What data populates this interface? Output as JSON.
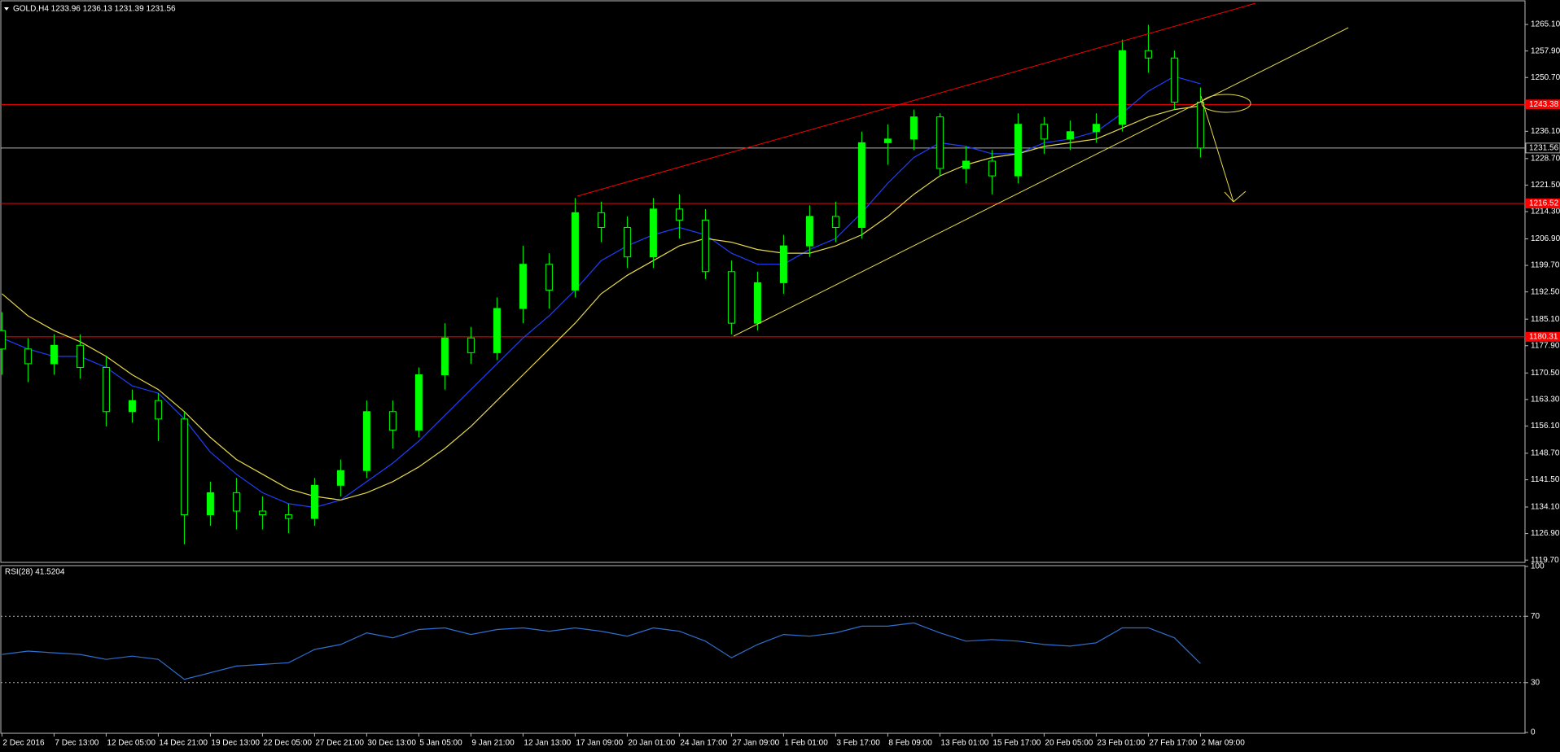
{
  "chart_data": [
    {
      "type": "candlestick",
      "title": "GOLD,H4  1233.96 1236.13 1231.39 1231.56",
      "color": "#00ff00",
      "categories": [
        "2 Dec 2016",
        null,
        "7 Dec 13:00",
        null,
        "12 Dec 05:00",
        null,
        "14 Dec 21:00",
        null,
        "19 Dec 13:00",
        null,
        "22 Dec 05:00",
        null,
        "27 Dec 21:00",
        null,
        "30 Dec 13:00",
        null,
        "5 Jan 05:00",
        null,
        "9 Jan 21:00",
        null,
        "12 Jan 13:00",
        null,
        "17 Jan 09:00",
        null,
        "20 Jan 01:00",
        null,
        "24 Jan 17:00",
        null,
        "27 Jan 09:00",
        null,
        "1 Feb 01:00",
        null,
        "3 Feb 17:00",
        null,
        "8 Feb 09:00",
        null,
        "13 Feb 01:00",
        null,
        "15 Feb 17:00",
        null,
        "20 Feb 05:00",
        null,
        "23 Feb 01:00",
        null,
        "27 Feb 17:00",
        null,
        "2 Mar 09:00"
      ],
      "open": [
        1182,
        1177,
        1173,
        1178,
        1172,
        1160,
        1163,
        1158,
        1132,
        1138,
        1133,
        1132,
        1131,
        1140,
        1144,
        1160,
        1155,
        1170,
        1180,
        1176,
        1188,
        1200,
        1193,
        1214,
        1210,
        1202,
        1215,
        1212,
        1198,
        1184,
        1195,
        1205,
        1213,
        1210,
        1233,
        1234,
        1240,
        1226,
        1228,
        1224,
        1238,
        1234,
        1236,
        1238,
        1258,
        1256,
        1244
      ],
      "high": [
        1187,
        1180,
        1181,
        1181,
        1175,
        1166,
        1165,
        1160,
        1141,
        1142,
        1137,
        1135,
        1142,
        1147,
        1163,
        1163,
        1172,
        1184,
        1183,
        1191,
        1205,
        1203,
        1218,
        1217,
        1213,
        1218,
        1219,
        1215,
        1201,
        1198,
        1208,
        1216,
        1217,
        1236,
        1238,
        1242,
        1241,
        1232,
        1231,
        1241,
        1240,
        1239,
        1241,
        1261,
        1265,
        1258,
        1248
      ],
      "low": [
        1170,
        1168,
        1170,
        1169,
        1156,
        1157,
        1152,
        1124,
        1129,
        1128,
        1128,
        1127,
        1129,
        1137,
        1142,
        1150,
        1153,
        1166,
        1173,
        1174,
        1184,
        1188,
        1191,
        1206,
        1199,
        1199,
        1207,
        1196,
        1181,
        1182,
        1192,
        1202,
        1206,
        1207,
        1227,
        1231,
        1224,
        1222,
        1219,
        1222,
        1230,
        1231,
        1233,
        1236,
        1252,
        1242,
        1229
      ],
      "close": [
        1177,
        1173,
        1178,
        1172,
        1160,
        1163,
        1158,
        1132,
        1138,
        1133,
        1132,
        1131,
        1140,
        1144,
        1160,
        1155,
        1170,
        1180,
        1176,
        1188,
        1200,
        1193,
        1214,
        1210,
        1202,
        1215,
        1212,
        1198,
        1184,
        1195,
        1205,
        1213,
        1210,
        1233,
        1234,
        1240,
        1226,
        1228,
        1224,
        1238,
        1234,
        1236,
        1238,
        1258,
        1256,
        1244,
        1231.56
      ],
      "series": [
        {
          "color": "#1f3fff",
          "values": [
            1180,
            1177,
            1175,
            1175,
            1172,
            1167,
            1165,
            1158,
            1149,
            1143,
            1138,
            1135,
            1134,
            1136,
            1141,
            1146,
            1152,
            1159,
            1166,
            1173,
            1180,
            1186,
            1193,
            1201,
            1205,
            1208,
            1210,
            1208,
            1203,
            1200,
            1200,
            1204,
            1207,
            1214,
            1222,
            1229,
            1233,
            1232,
            1230,
            1230,
            1233,
            1234,
            1236,
            1241,
            1247,
            1251,
            1249
          ]
        },
        {
          "color": "#e6d84a",
          "values": [
            1192,
            1186,
            1182,
            1179,
            1175,
            1170,
            1166,
            1160,
            1153,
            1147,
            1143,
            1139,
            1137,
            1136,
            1138,
            1141,
            1145,
            1150,
            1156,
            1163,
            1170,
            1177,
            1184,
            1192,
            1197,
            1201,
            1205,
            1207,
            1206,
            1204,
            1203,
            1203,
            1205,
            1208,
            1213,
            1219,
            1224,
            1227,
            1229,
            1230,
            1232,
            1233,
            1234,
            1237,
            1240,
            1242,
            1243
          ]
        }
      ],
      "levels": [
        1243.38,
        1216.52,
        1180.31
      ],
      "level_color": "#ff0000",
      "last_price": 1231.56,
      "last_color": "#b0b0b0",
      "ylim": [
        1119.3,
        1271.3
      ],
      "yticks": [
        {
          "value": 1265.1,
          "label": "1265.10"
        },
        {
          "value": 1257.9,
          "label": "1257.90"
        },
        {
          "value": 1250.7,
          "label": "1250.70"
        },
        {
          "value": 1236.1,
          "label": "1236.10"
        },
        {
          "value": 1228.7,
          "label": "1228.70"
        },
        {
          "value": 1221.5,
          "label": "1221.50"
        },
        {
          "value": 1214.3,
          "label": "1214.30"
        },
        {
          "value": 1206.9,
          "label": "1206.90"
        },
        {
          "value": 1199.7,
          "label": "1199.70"
        },
        {
          "value": 1192.5,
          "label": "1192.50"
        },
        {
          "value": 1185.1,
          "label": "1185.10"
        },
        {
          "value": 1177.9,
          "label": "1177.90"
        },
        {
          "value": 1170.5,
          "label": "1170.50"
        },
        {
          "value": 1163.3,
          "label": "1163.30"
        },
        {
          "value": 1156.1,
          "label": "1156.10"
        },
        {
          "value": 1148.7,
          "label": "1148.70"
        },
        {
          "value": 1141.5,
          "label": "1141.50"
        },
        {
          "value": 1134.1,
          "label": "1134.10"
        },
        {
          "value": 1126.9,
          "label": "1126.90"
        },
        {
          "value": 1119.7,
          "label": "1119.70"
        }
      ]
    },
    {
      "type": "line",
      "title": "RSI(28) 41.5204",
      "color": "#2f6fd0",
      "values": [
        47,
        49,
        48,
        47,
        44,
        46,
        44,
        32,
        36,
        40,
        41,
        42,
        50,
        53,
        60,
        57,
        62,
        63,
        59,
        62,
        63,
        61,
        63,
        61,
        58,
        63,
        61,
        55,
        45,
        53,
        59,
        58,
        60,
        64,
        64,
        66,
        60,
        55,
        56,
        55,
        53,
        52,
        54,
        63,
        63,
        57,
        41.5204
      ],
      "levels": [
        70,
        30
      ],
      "ylim": [
        0,
        100
      ],
      "yticks": [
        100,
        70,
        30,
        0
      ]
    }
  ]
}
